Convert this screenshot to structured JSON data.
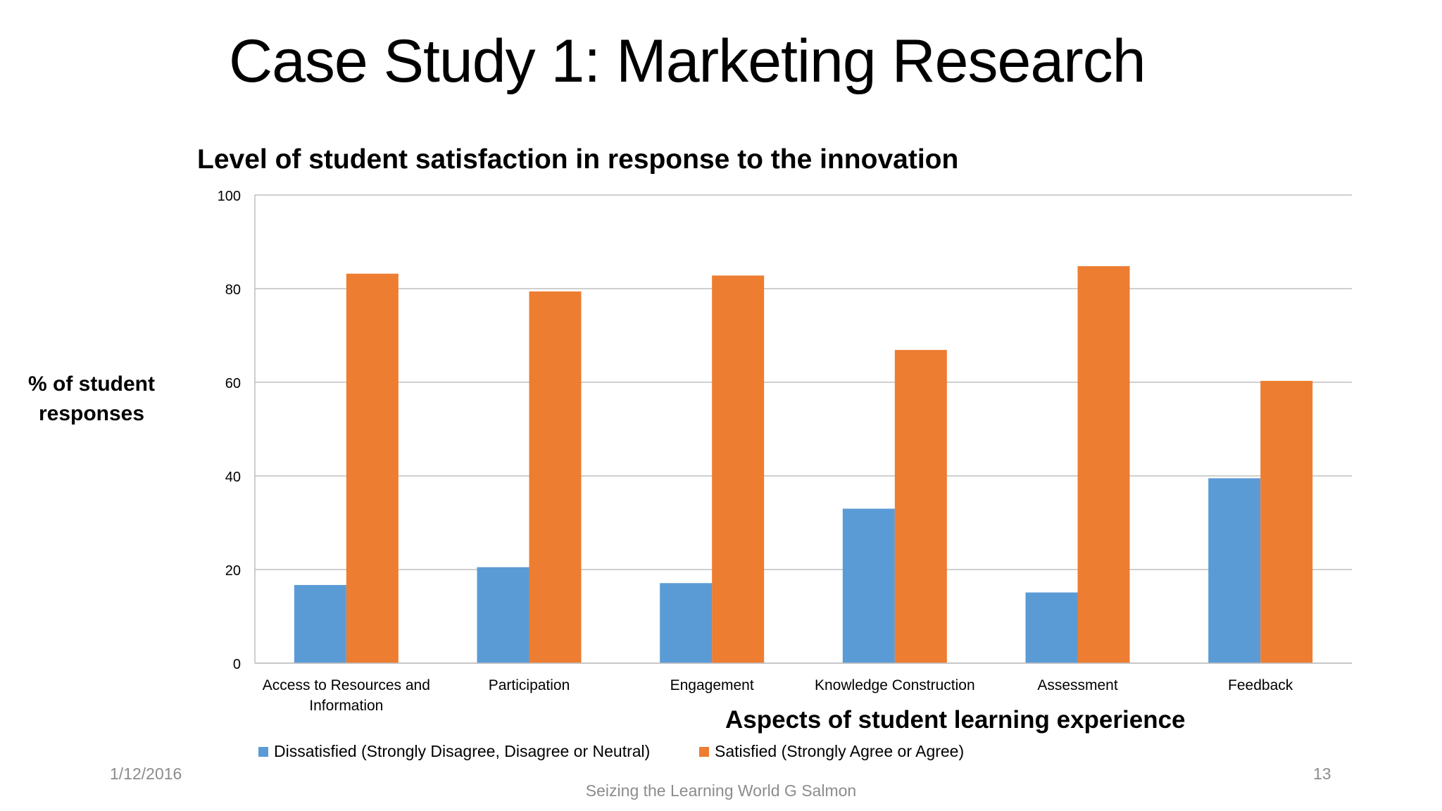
{
  "slide": {
    "title": "Case Study 1: Marketing Research",
    "footer_date": "1/12/2016",
    "footer_center": "Seizing the Learning World G Salmon",
    "page_number": "13"
  },
  "chart_data": {
    "type": "bar",
    "title": "Level of student satisfaction in response to the innovation",
    "xlabel": "Aspects of student learning experience",
    "ylabel": "% of student responses",
    "ylabel_lines": [
      "% of student",
      "responses"
    ],
    "ylim": [
      0,
      100
    ],
    "yticks": [
      "0",
      "20",
      "40",
      "60",
      "80",
      "100"
    ],
    "grid": true,
    "legend_position": "bottom",
    "categories": [
      "Access to Resources and Information",
      "Participation",
      "Engagement",
      "Knowledge Construction",
      "Assessment",
      "Feedback"
    ],
    "category_label_lines": [
      [
        "Access to Resources and",
        "Information"
      ],
      [
        "Participation"
      ],
      [
        "Engagement"
      ],
      [
        "Knowledge Construction"
      ],
      [
        "Assessment"
      ],
      [
        "Feedback"
      ]
    ],
    "series": [
      {
        "name": "Dissatisfied (Strongly Disagree, Disagree or Neutral)",
        "color": "#5b9bd5",
        "values": [
          16.7,
          20.5,
          17.1,
          33.0,
          15.1,
          39.5
        ]
      },
      {
        "name": "Satisfied (Strongly Agree or Agree)",
        "color": "#ed7d31",
        "values": [
          83.2,
          79.4,
          82.8,
          66.9,
          84.8,
          60.3
        ]
      }
    ]
  }
}
